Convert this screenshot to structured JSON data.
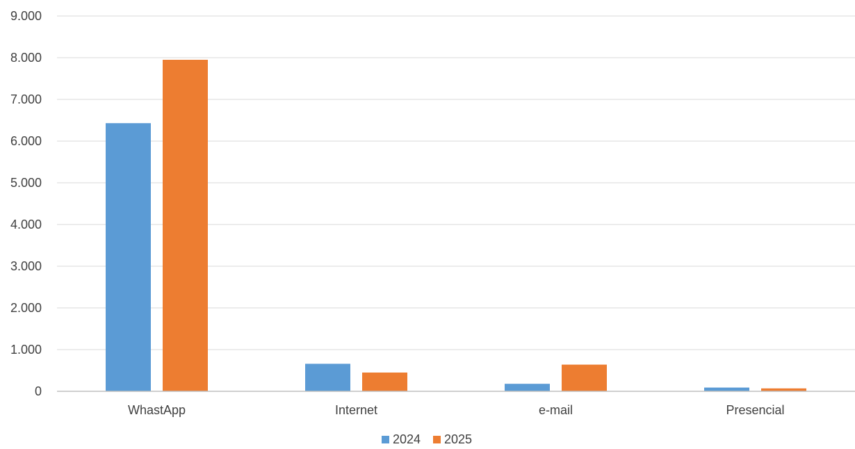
{
  "chart_data": {
    "type": "bar",
    "categories": [
      "WhastApp",
      "Internet",
      "e-mail",
      "Presencial"
    ],
    "series": [
      {
        "name": "2024",
        "values": [
          6430,
          660,
          180,
          90
        ],
        "color": "#5b9bd5"
      },
      {
        "name": "2025",
        "values": [
          7950,
          450,
          640,
          70
        ],
        "color": "#ed7d31"
      }
    ],
    "ylim": [
      0,
      9000
    ],
    "yticks": [
      0,
      1000,
      2000,
      3000,
      4000,
      5000,
      6000,
      7000,
      8000,
      9000
    ],
    "ytick_labels": [
      "0",
      "1.000",
      "2.000",
      "3.000",
      "4.000",
      "5.000",
      "6.000",
      "7.000",
      "8.000",
      "9.000"
    ],
    "grid": true,
    "legend_position": "bottom",
    "gridline_color": "#d9d9d9",
    "axis_color": "#bfbfbf"
  }
}
